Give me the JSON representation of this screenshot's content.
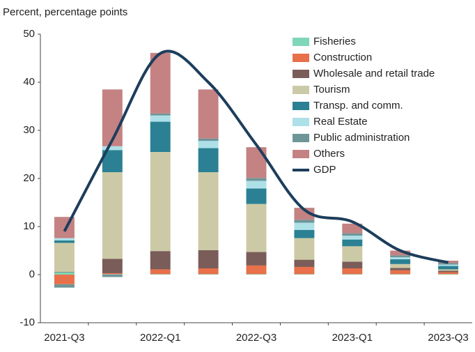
{
  "chart_data": {
    "type": "bar",
    "stacked": true,
    "y_label": "Percent, percentage points",
    "categories": [
      "2021-Q3",
      null,
      "2022-Q1",
      null,
      "2022-Q3",
      null,
      "2023-Q1",
      null,
      "2023-Q3"
    ],
    "ylim": [
      -10,
      50
    ],
    "yticks": [
      -10,
      0,
      10,
      20,
      30,
      40,
      50
    ],
    "grid": false,
    "legend": "upper right",
    "series": [
      {
        "name": "Fisheries",
        "color": "#7fd6b8",
        "values": [
          0.5,
          0.1,
          0.1,
          0.1,
          0.1,
          0.1,
          0.1,
          0.1,
          0.1
        ]
      },
      {
        "name": "Construction",
        "color": "#e8704a",
        "values": [
          -2.0,
          0.2,
          1.0,
          1.2,
          1.8,
          1.5,
          1.2,
          0.8,
          0.4
        ]
      },
      {
        "name": "Wholesale and retail trade",
        "color": "#7a5c58",
        "values": [
          0.1,
          3.0,
          3.8,
          3.8,
          2.8,
          1.5,
          1.4,
          0.5,
          0.3
        ]
      },
      {
        "name": "Tourism",
        "color": "#cccaa6",
        "values": [
          6.0,
          18.0,
          20.6,
          16.2,
          10.0,
          4.5,
          3.2,
          0.8,
          0.3
        ]
      },
      {
        "name": "Transp. and comm.",
        "color": "#2b8093",
        "values": [
          0.5,
          4.6,
          6.3,
          5.0,
          3.2,
          1.7,
          1.4,
          1.0,
          0.7
        ]
      },
      {
        "name": "Real Estate",
        "color": "#aee0e8",
        "values": [
          0.5,
          0.8,
          1.3,
          1.5,
          1.6,
          1.5,
          0.8,
          0.4,
          0.3
        ]
      },
      {
        "name": "Public administration",
        "color": "#6e9598",
        "values": [
          -0.7,
          -0.5,
          0.4,
          0.5,
          0.6,
          0.6,
          0.5,
          0.4,
          0.3
        ]
      },
      {
        "name": "Others",
        "color": "#c48283",
        "values": [
          4.4,
          11.8,
          12.6,
          10.2,
          6.4,
          2.5,
          2.0,
          1.0,
          0.5
        ]
      },
      {
        "name": "GDP",
        "type": "line",
        "color": "#1d3e5c",
        "values": [
          9,
          28,
          46,
          40,
          27,
          13.5,
          11,
          5,
          2.5
        ]
      }
    ]
  }
}
